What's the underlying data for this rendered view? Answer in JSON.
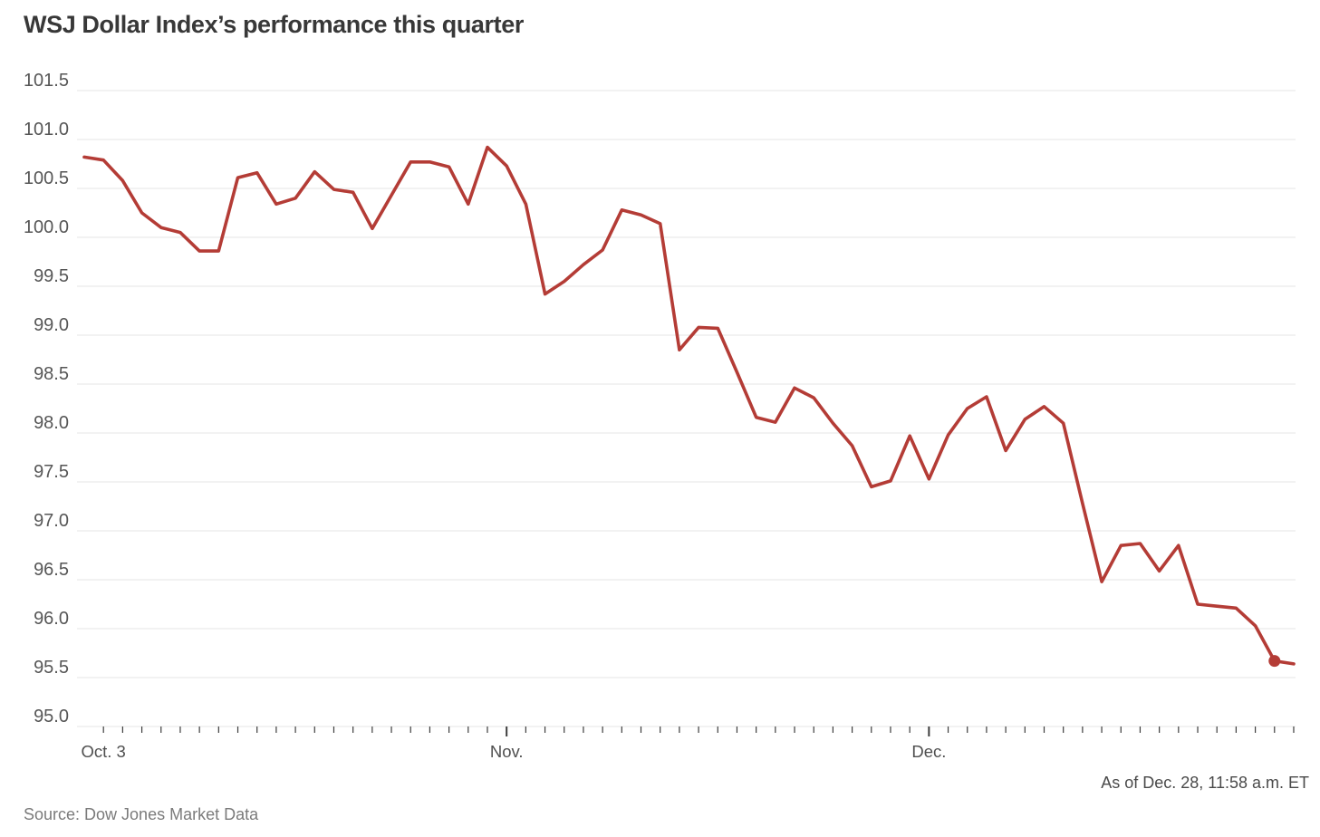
{
  "page": {
    "title": "WSJ Dollar Index’s performance this quarter",
    "asof": "As of Dec. 28, 11:58 a.m. ET",
    "source": "Source: Dow Jones Market Data"
  },
  "chart_data": {
    "type": "line",
    "title": "WSJ Dollar Index’s performance this quarter",
    "series": [
      {
        "name": "WSJ Dollar Index",
        "values": [
          100.82,
          100.79,
          100.58,
          100.25,
          100.1,
          100.05,
          99.86,
          99.86,
          100.61,
          100.66,
          100.34,
          100.4,
          100.67,
          100.49,
          100.46,
          100.09,
          100.43,
          100.77,
          100.77,
          100.72,
          100.34,
          100.92,
          100.73,
          100.34,
          99.42,
          99.55,
          99.72,
          99.87,
          100.28,
          100.23,
          100.14,
          98.85,
          99.08,
          99.07,
          98.62,
          98.16,
          98.11,
          98.46,
          98.36,
          98.1,
          97.87,
          97.45,
          97.51,
          97.97,
          97.53,
          97.98,
          98.25,
          98.37,
          97.82,
          98.14,
          98.27,
          98.1,
          97.28,
          96.48,
          96.85,
          96.87,
          96.59,
          96.85,
          96.25,
          96.23,
          96.21,
          96.03,
          95.67,
          95.64
        ]
      }
    ],
    "x_description": "Daily values, one point per weekday from start of quarter through Dec. 28",
    "x_tick_labels": [
      {
        "label": "Oct. 3",
        "index": 1,
        "major": false
      },
      {
        "label": "Nov.",
        "index": 22,
        "major": true
      },
      {
        "label": "Dec.",
        "index": 44,
        "major": true
      }
    ],
    "y_ticks": [
      101.5,
      101.0,
      100.5,
      100.0,
      99.5,
      99.0,
      98.5,
      98.0,
      97.5,
      97.0,
      96.5,
      96.0,
      95.5,
      95.0
    ],
    "ylim": [
      95.0,
      101.5
    ],
    "grid": "horizontal",
    "legend": "none",
    "end_dot_index": 62,
    "asof": "As of Dec. 28, 11:58 a.m. ET",
    "source": "Source: Dow Jones Market Data",
    "colors": {
      "line": "#b43c36",
      "grid": "#e4e4e4",
      "tick": "#3d3d3d"
    }
  }
}
